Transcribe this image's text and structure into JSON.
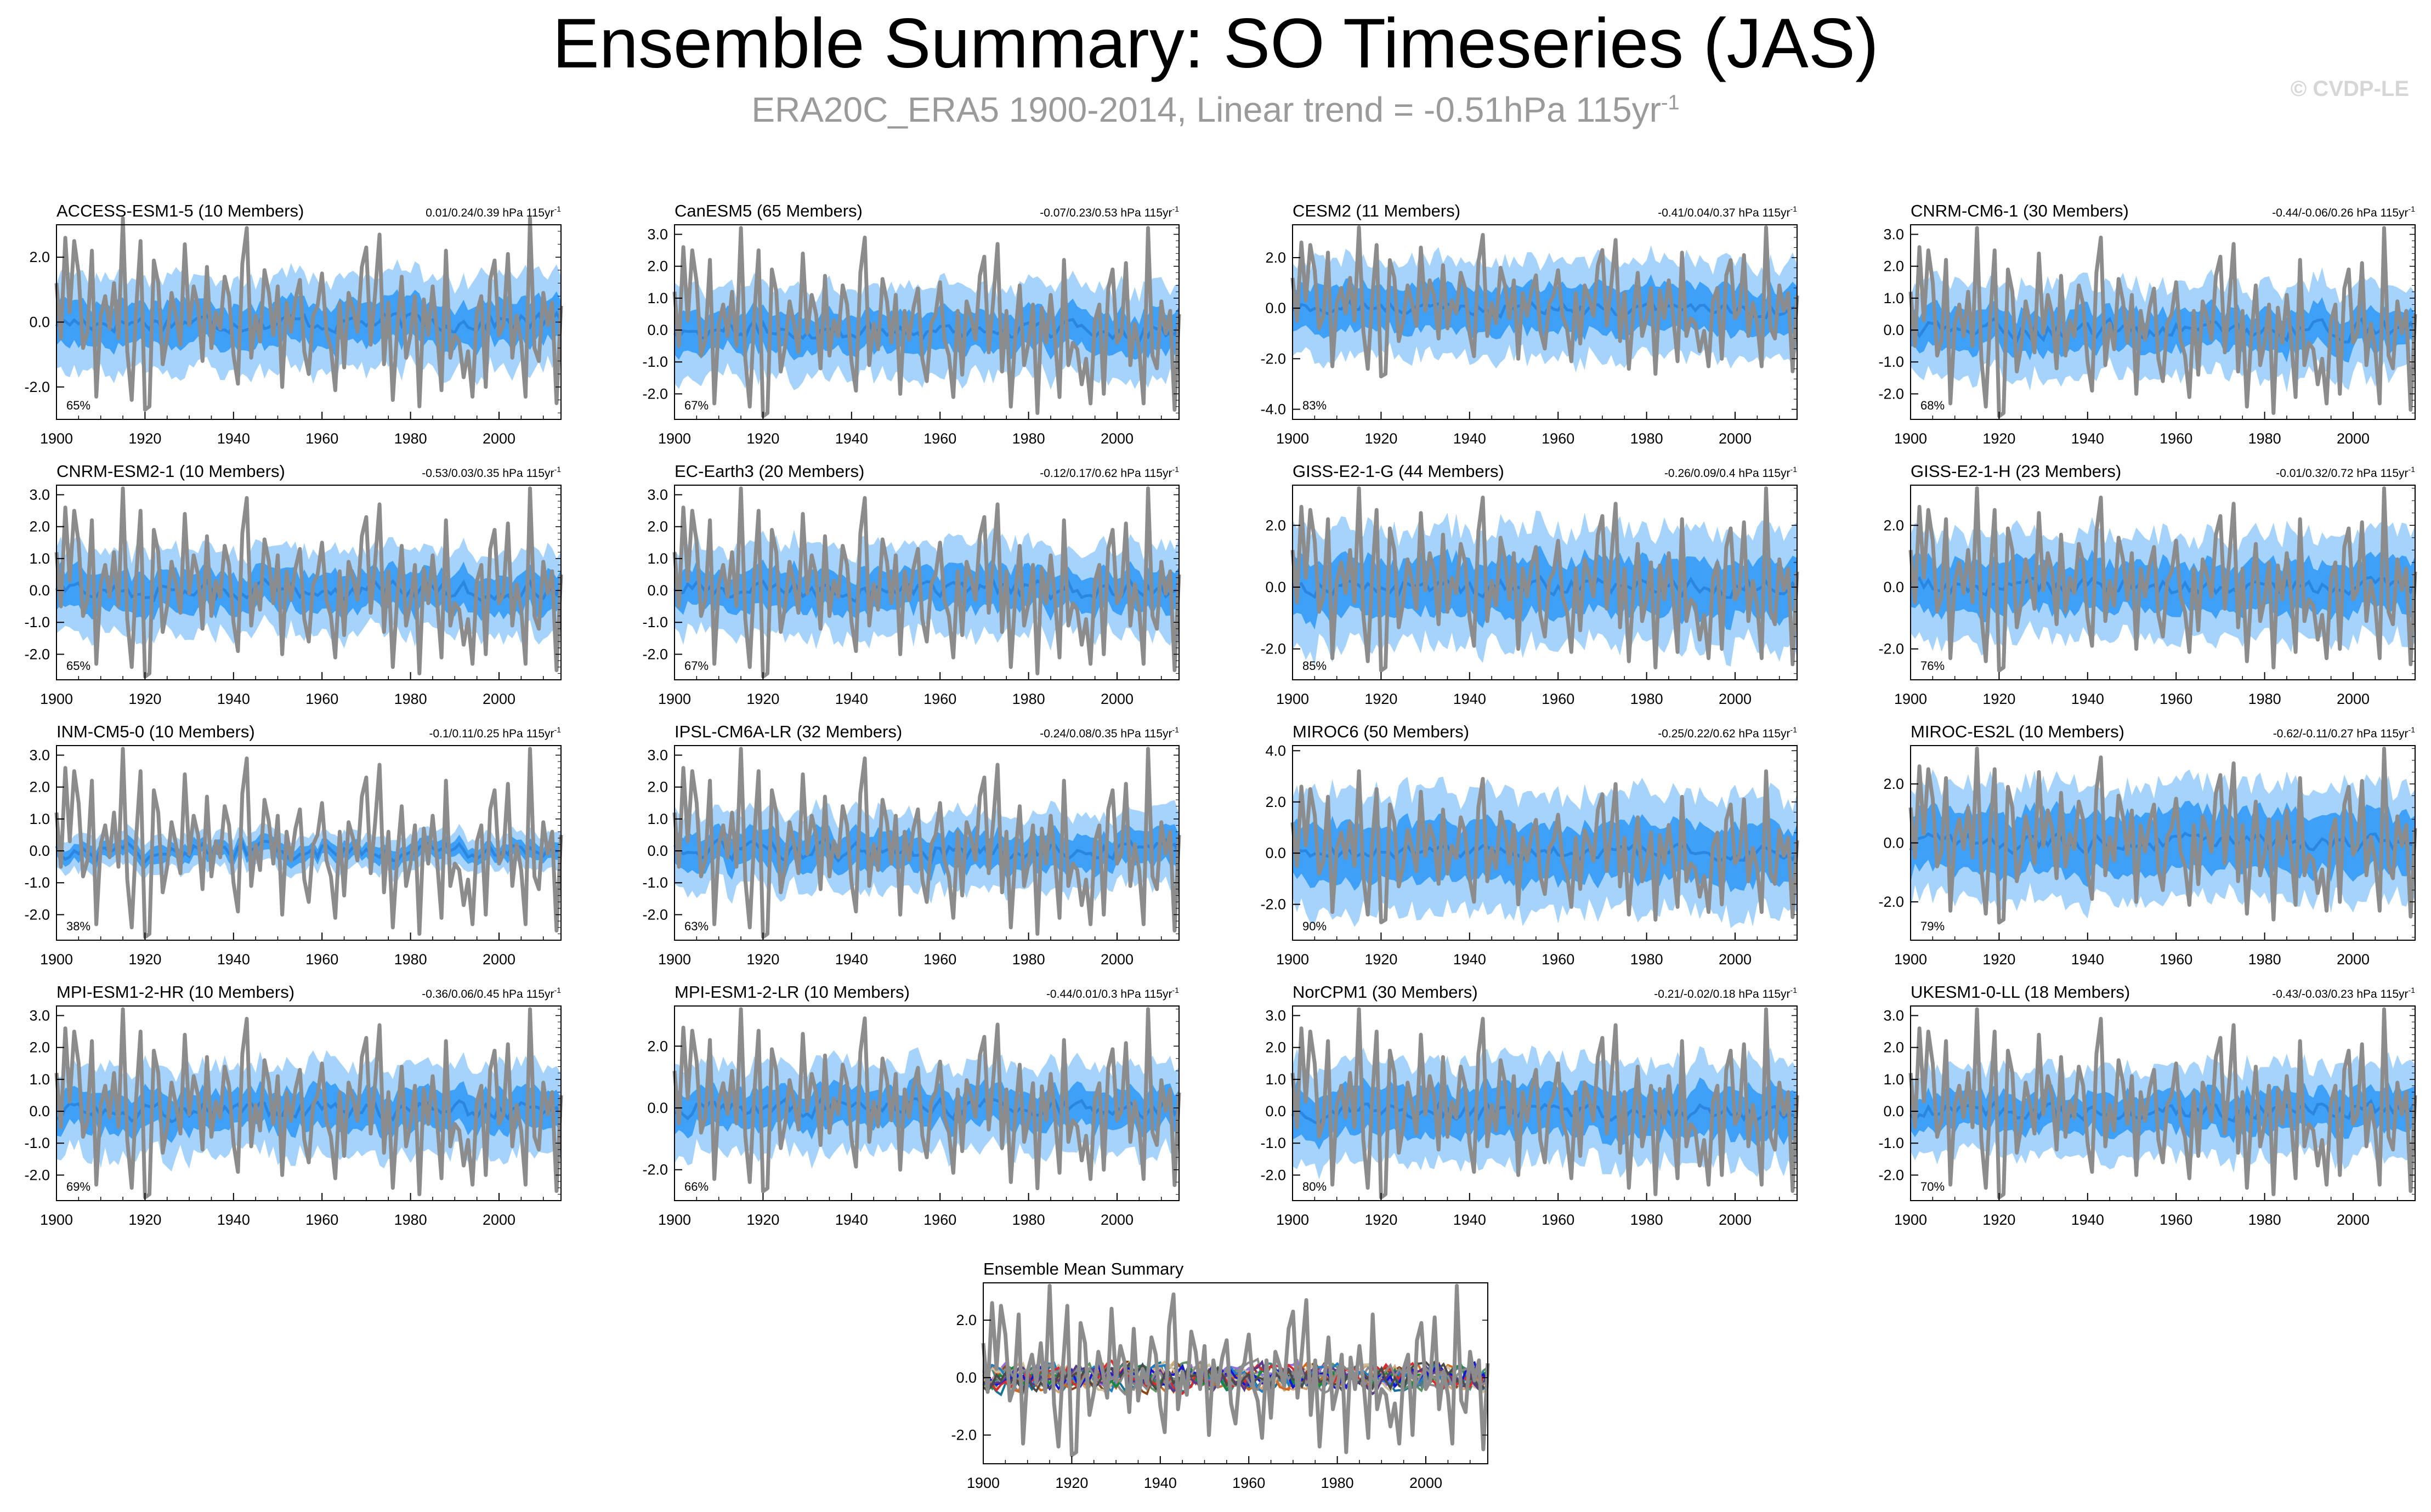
{
  "title": "Ensemble Summary: SO Timeseries (JAS)",
  "subtitle": {
    "text": "ERA20C_ERA5 1900-2014, Linear trend = -0.51hPa 115yr",
    "superscript": "-1"
  },
  "watermark": "© CVDP-LE",
  "colors": {
    "outer_band": "#a6d3fb",
    "inner_band": "#3ea0f7",
    "ensemble_mean": "#2a86e0",
    "observations": "#8c8c8c",
    "frame": "#000000"
  },
  "chart_data": {
    "type": "line",
    "x_range": [
      1900,
      2014
    ],
    "x_ticks": [
      1900,
      1920,
      1940,
      1960,
      1980,
      2000
    ],
    "observations": {
      "name": "ERA20C_ERA5",
      "values": [
        1.2,
        -0.5,
        2.6,
        0.3,
        2.5,
        1.5,
        -0.8,
        -0.3,
        2.2,
        -2.3,
        0.2,
        0.8,
        -0.2,
        1.2,
        -0.5,
        3.2,
        -0.9,
        -2.4,
        0.4,
        2.5,
        -2.7,
        -2.6,
        1.9,
        1.2,
        -1.3,
        -0.5,
        0.9,
        0.2,
        -0.7,
        2.4,
        -0.1,
        1.1,
        0.5,
        -1.2,
        1.7,
        -0.8,
        0.3,
        -0.2,
        1.4,
        0.8,
        -1.0,
        -1.9,
        1.8,
        2.9,
        -1.1,
        0.2,
        -0.6,
        1.6,
        0.9,
        -0.4,
        1.1,
        -2.0,
        0.6,
        -0.3,
        0.7,
        1.3,
        -0.9,
        -1.6,
        0.2,
        0.5,
        1.5,
        -0.3,
        -0.8,
        -2.1,
        0.6,
        -1.4,
        0.9,
        0.4,
        -0.3,
        1.7,
        2.3,
        -0.7,
        0.9,
        2.7,
        -1.3,
        0.6,
        -2.4,
        -0.2,
        1.4,
        -1.1,
        -0.4,
        0.8,
        -2.6,
        0.7,
        -0.4,
        1.1,
        -0.3,
        -2.1,
        2.2,
        -1.1,
        -0.4,
        -0.6,
        -1.7,
        -0.9,
        -2.3,
        0.3,
        0.8,
        -2.0,
        1.3,
        1.9,
        -0.4,
        -0.1,
        2.1,
        -1.1,
        0.2,
        -0.6,
        -2.3,
        3.2,
        -0.8,
        -1.2,
        0.9,
        -0.1,
        0.6,
        -2.5,
        0.5
      ]
    },
    "panels": [
      {
        "model": "ACCESS-ESM1-5",
        "members_label": "(10 Members)",
        "title_color": "#1a7296",
        "stat": "0.01/0.24/0.39 hPa 115yr",
        "stat_sup": "-1",
        "pct": "65%",
        "y_ticks": [
          -2.0,
          0.0,
          2.0
        ],
        "y_tick_labels": [
          "-2.0",
          "0.0",
          "2.0"
        ],
        "ylim": [
          -3.0,
          3.0
        ],
        "outer_spread": 1.45,
        "inner_spread": 0.65
      },
      {
        "model": "CanESM5",
        "members_label": "(65 Members)",
        "title_color": "#5e9366",
        "stat": "-0.07/0.23/0.53 hPa 115yr",
        "stat_sup": "-1",
        "pct": "67%",
        "y_ticks": [
          -2.0,
          -1.0,
          0.0,
          1.0,
          2.0,
          3.0
        ],
        "y_tick_labels": [
          "-2.0",
          "-1.0",
          "0.0",
          "1.0",
          "2.0",
          "3.0"
        ],
        "ylim": [
          -2.8,
          3.3
        ],
        "outer_spread": 1.4,
        "inner_spread": 0.6
      },
      {
        "model": "CESM2",
        "members_label": "(11 Members)",
        "title_color": "#8a8a8a",
        "stat": "-0.41/0.04/0.37 hPa 115yr",
        "stat_sup": "-1",
        "pct": "83%",
        "y_ticks": [
          -4.0,
          -2.0,
          0.0,
          2.0
        ],
        "y_tick_labels": [
          "-4.0",
          "-2.0",
          "0.0",
          "2.0"
        ],
        "ylim": [
          -4.4,
          3.3
        ],
        "outer_spread": 1.9,
        "inner_spread": 0.9
      },
      {
        "model": "CNRM-CM6-1",
        "members_label": "(30 Members)",
        "title_color": "#8b4513",
        "stat": "-0.44/-0.06/0.26 hPa 115yr",
        "stat_sup": "-1",
        "pct": "68%",
        "y_ticks": [
          -2.0,
          -1.0,
          0.0,
          1.0,
          2.0,
          3.0
        ],
        "y_tick_labels": [
          "-2.0",
          "-1.0",
          "0.0",
          "1.0",
          "2.0",
          "3.0"
        ],
        "ylim": [
          -2.8,
          3.3
        ],
        "outer_spread": 1.4,
        "inner_spread": 0.6
      },
      {
        "model": "CNRM-ESM2-1",
        "members_label": "(10 Members)",
        "title_color": "#9370db",
        "stat": "-0.53/0.03/0.35 hPa 115yr",
        "stat_sup": "-1",
        "pct": "65%",
        "y_ticks": [
          -2.0,
          -1.0,
          0.0,
          1.0,
          2.0,
          3.0
        ],
        "y_tick_labels": [
          "-2.0",
          "-1.0",
          "0.0",
          "1.0",
          "2.0",
          "3.0"
        ],
        "ylim": [
          -2.8,
          3.3
        ],
        "outer_spread": 1.3,
        "inner_spread": 0.6
      },
      {
        "model": "EC-Earth3",
        "members_label": "(20 Members)",
        "title_color": "#d2a679",
        "stat": "-0.12/0.17/0.62 hPa 115yr",
        "stat_sup": "-1",
        "pct": "67%",
        "y_ticks": [
          -2.0,
          -1.0,
          0.0,
          1.0,
          2.0,
          3.0
        ],
        "y_tick_labels": [
          "-2.0",
          "-1.0",
          "0.0",
          "1.0",
          "2.0",
          "3.0"
        ],
        "ylim": [
          -2.8,
          3.3
        ],
        "outer_spread": 1.4,
        "inner_spread": 0.6
      },
      {
        "model": "GISS-E2-1-G",
        "members_label": "(44 Members)",
        "title_color": "#4a7d7d",
        "stat": "-0.26/0.09/0.4 hPa 115yr",
        "stat_sup": "-1",
        "pct": "85%",
        "y_ticks": [
          -2.0,
          0.0,
          2.0
        ],
        "y_tick_labels": [
          "-2.0",
          "0.0",
          "2.0"
        ],
        "ylim": [
          -3.0,
          3.3
        ],
        "outer_spread": 1.9,
        "inner_spread": 0.9
      },
      {
        "model": "GISS-E2-1-H",
        "members_label": "(23 Members)",
        "title_color": "#d2691e",
        "stat": "-0.01/0.32/0.72 hPa 115yr",
        "stat_sup": "-1",
        "pct": "76%",
        "y_ticks": [
          -2.0,
          0.0,
          2.0
        ],
        "y_tick_labels": [
          "-2.0",
          "0.0",
          "2.0"
        ],
        "ylim": [
          -3.0,
          3.3
        ],
        "outer_spread": 1.7,
        "inner_spread": 0.8
      },
      {
        "model": "INM-CM5-0",
        "members_label": "(10 Members)",
        "title_color": "#cdc0a0",
        "stat": "-0.1/0.11/0.25 hPa 115yr",
        "stat_sup": "-1",
        "pct": "38%",
        "y_ticks": [
          -2.0,
          -1.0,
          0.0,
          1.0,
          2.0,
          3.0
        ],
        "y_tick_labels": [
          "-2.0",
          "-1.0",
          "0.0",
          "1.0",
          "2.0",
          "3.0"
        ],
        "ylim": [
          -2.8,
          3.3
        ],
        "outer_spread": 0.55,
        "inner_spread": 0.25
      },
      {
        "model": "IPSL-CM6A-LR",
        "members_label": "(32 Members)",
        "title_color": "#1e7fc9",
        "stat": "-0.24/0.08/0.35 hPa 115yr",
        "stat_sup": "-1",
        "pct": "63%",
        "y_ticks": [
          -2.0,
          -1.0,
          0.0,
          1.0,
          2.0,
          3.0
        ],
        "y_tick_labels": [
          "-2.0",
          "-1.0",
          "0.0",
          "1.0",
          "2.0",
          "3.0"
        ],
        "ylim": [
          -2.8,
          3.3
        ],
        "outer_spread": 1.2,
        "inner_spread": 0.55
      },
      {
        "model": "MIROC6",
        "members_label": "(50 Members)",
        "title_color": "#148a3c",
        "stat": "-0.25/0.22/0.62 hPa 115yr",
        "stat_sup": "-1",
        "pct": "90%",
        "y_ticks": [
          -2.0,
          0.0,
          2.0,
          4.0
        ],
        "y_tick_labels": [
          "-2.0",
          "0.0",
          "2.0",
          "4.0"
        ],
        "ylim": [
          -3.4,
          4.2
        ],
        "outer_spread": 2.3,
        "inner_spread": 1.1
      },
      {
        "model": "MIROC-ES2L",
        "members_label": "(10 Members)",
        "title_color": "#d92b2b",
        "stat": "-0.62/-0.11/0.27 hPa 115yr",
        "stat_sup": "-1",
        "pct": "79%",
        "y_ticks": [
          -2.0,
          0.0,
          2.0
        ],
        "y_tick_labels": [
          "-2.0",
          "0.0",
          "2.0"
        ],
        "ylim": [
          -3.3,
          3.3
        ],
        "outer_spread": 1.9,
        "inner_spread": 1.0
      },
      {
        "model": "MPI-ESM1-2-HR",
        "members_label": "(10 Members)",
        "title_color": "#1515d8",
        "stat": "-0.36/0.06/0.45 hPa 115yr",
        "stat_sup": "-1",
        "pct": "69%",
        "y_ticks": [
          -2.0,
          -1.0,
          0.0,
          1.0,
          2.0,
          3.0
        ],
        "y_tick_labels": [
          "-2.0",
          "-1.0",
          "0.0",
          "1.0",
          "2.0",
          "3.0"
        ],
        "ylim": [
          -2.8,
          3.3
        ],
        "outer_spread": 1.4,
        "inner_spread": 0.6
      },
      {
        "model": "MPI-ESM1-2-LR",
        "members_label": "(10 Members)",
        "title_color": "#5b3a8a",
        "stat": "-0.44/0.01/0.3 hPa 115yr",
        "stat_sup": "-1",
        "pct": "66%",
        "y_ticks": [
          -2.0,
          0.0,
          2.0
        ],
        "y_tick_labels": [
          "-2.0",
          "0.0",
          "2.0"
        ],
        "ylim": [
          -3.0,
          3.3
        ],
        "outer_spread": 1.4,
        "inner_spread": 0.6
      },
      {
        "model": "NorCPM1",
        "members_label": "(30 Members)",
        "title_color": "#8a8a8a",
        "stat": "-0.21/-0.02/0.18 hPa 115yr",
        "stat_sup": "-1",
        "pct": "80%",
        "y_ticks": [
          -2.0,
          -1.0,
          0.0,
          1.0,
          2.0,
          3.0
        ],
        "y_tick_labels": [
          "-2.0",
          "-1.0",
          "0.0",
          "1.0",
          "2.0",
          "3.0"
        ],
        "ylim": [
          -2.8,
          3.3
        ],
        "outer_spread": 1.6,
        "inner_spread": 0.75
      },
      {
        "model": "UKESM1-0-LL",
        "members_label": "(18 Members)",
        "title_color": "#4a4a4a",
        "stat": "-0.43/-0.03/0.23 hPa 115yr",
        "stat_sup": "-1",
        "pct": "70%",
        "y_ticks": [
          -2.0,
          -1.0,
          0.0,
          1.0,
          2.0,
          3.0
        ],
        "y_tick_labels": [
          "-2.0",
          "-1.0",
          "0.0",
          "1.0",
          "2.0",
          "3.0"
        ],
        "ylim": [
          -2.8,
          3.3
        ],
        "outer_spread": 1.4,
        "inner_spread": 0.6
      }
    ],
    "summary": {
      "title": "Ensemble Mean Summary",
      "y_ticks": [
        -2.0,
        0.0,
        2.0
      ],
      "y_tick_labels": [
        "-2.0",
        "0.0",
        "2.0"
      ],
      "ylim": [
        -3.0,
        3.3
      ],
      "series_colors": [
        "#1a7296",
        "#5e9366",
        "#8a8a8a",
        "#8b4513",
        "#9370db",
        "#d2a679",
        "#4a7d7d",
        "#d2691e",
        "#cdc0a0",
        "#1e7fc9",
        "#148a3c",
        "#d92b2b",
        "#1515d8",
        "#5b3a8a",
        "#8a8a8a",
        "#4a4a4a"
      ]
    }
  }
}
